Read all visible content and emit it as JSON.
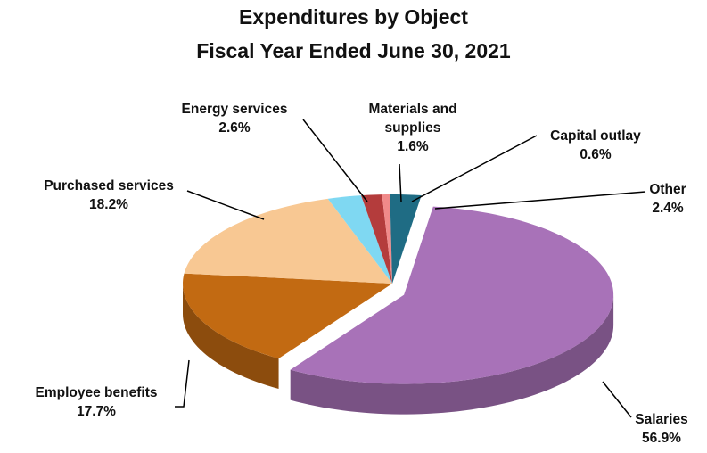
{
  "chart_data": {
    "type": "pie3d",
    "title": "Expenditures by Object",
    "subtitle": "Fiscal Year Ended June 30, 2021",
    "categories": [
      "Salaries",
      "Employee benefits",
      "Purchased services",
      "Energy services",
      "Materials and supplies",
      "Capital outlay",
      "Other"
    ],
    "values": [
      56.9,
      17.7,
      18.2,
      2.6,
      1.6,
      0.6,
      2.4
    ],
    "value_labels": [
      "56.9%",
      "17.7%",
      "18.2%",
      "2.6%",
      "1.6%",
      "0.6%",
      "2.4%"
    ],
    "colors": [
      "#a872b8",
      "#c26a12",
      "#f8c893",
      "#7fd8f2",
      "#b43c3c",
      "#f08a8a",
      "#1f6c84"
    ]
  }
}
